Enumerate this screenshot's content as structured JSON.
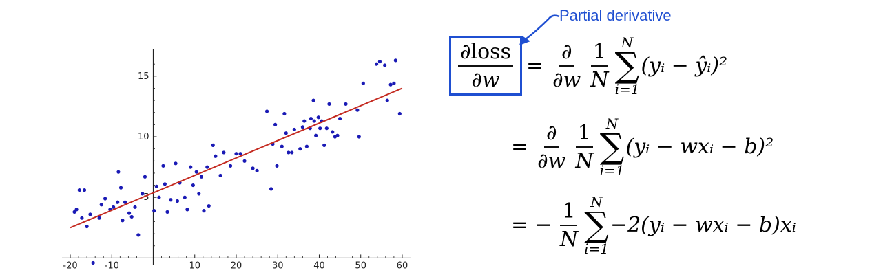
{
  "chart_data": {
    "type": "scatter",
    "xlim": [
      -21,
      62
    ],
    "ylim": [
      -0.6,
      17.2
    ],
    "x_ticks": [
      -20,
      -10,
      10,
      20,
      30,
      40,
      50,
      60
    ],
    "x_tick_labels": [
      "-20",
      "-10",
      "10",
      "20",
      "30",
      "40",
      "50",
      "60"
    ],
    "y_ticks": [
      5,
      10,
      15
    ],
    "y_tick_labels": [
      "5",
      "10",
      "15"
    ],
    "grid": false,
    "colors": {
      "points": "#1a1ab5",
      "fit_line": "#c42a20",
      "axes": "#222222"
    },
    "fit_line": {
      "x": [
        -20,
        60
      ],
      "y": [
        2.5,
        14.0
      ]
    },
    "series": [
      {
        "points": [
          [
            -19,
            3.8
          ],
          [
            -18.5,
            4.0
          ],
          [
            -17.8,
            5.6
          ],
          [
            -17.2,
            3.3
          ],
          [
            -16.6,
            5.6
          ],
          [
            -16,
            2.6
          ],
          [
            -15.2,
            3.6
          ],
          [
            -14.5,
            -0.4
          ],
          [
            -13,
            3.3
          ],
          [
            -12.5,
            4.4
          ],
          [
            -11.6,
            4.9
          ],
          [
            -10.4,
            4.0
          ],
          [
            -9.6,
            4.2
          ],
          [
            -8.6,
            4.6
          ],
          [
            -7.8,
            5.8
          ],
          [
            -7.4,
            3.1
          ],
          [
            -6.8,
            4.6
          ],
          [
            -5.8,
            3.7
          ],
          [
            -5.2,
            3.4
          ],
          [
            -4.4,
            4.2
          ],
          [
            -3.6,
            1.9
          ],
          [
            -2.6,
            5.3
          ],
          [
            -2,
            6.7
          ],
          [
            0.2,
            3.9
          ],
          [
            0.8,
            5.9
          ],
          [
            1.4,
            5.0
          ],
          [
            2.4,
            7.6
          ],
          [
            2.8,
            6.1
          ],
          [
            3.4,
            3.8
          ],
          [
            4.2,
            4.8
          ],
          [
            5.4,
            7.8
          ],
          [
            5.8,
            4.7
          ],
          [
            6.4,
            6.2
          ],
          [
            7.6,
            5.0
          ],
          [
            8.2,
            4.0
          ],
          [
            9,
            7.5
          ],
          [
            9.6,
            6.0
          ],
          [
            10.4,
            7.1
          ],
          [
            11,
            5.3
          ],
          [
            11.6,
            6.7
          ],
          [
            12.2,
            3.9
          ],
          [
            13,
            7.5
          ],
          [
            13.4,
            4.3
          ],
          [
            14.4,
            9.3
          ],
          [
            15,
            8.4
          ],
          [
            16.2,
            6.8
          ],
          [
            17,
            8.7
          ],
          [
            18.6,
            7.6
          ],
          [
            20,
            8.6
          ],
          [
            21,
            8.6
          ],
          [
            22,
            8.0
          ],
          [
            24,
            7.4
          ],
          [
            25,
            7.2
          ],
          [
            27.4,
            12.1
          ],
          [
            28.4,
            5.7
          ],
          [
            28.8,
            9.4
          ],
          [
            29.4,
            11.0
          ],
          [
            29.8,
            7.6
          ],
          [
            31,
            9.2
          ],
          [
            31.6,
            11.9
          ],
          [
            32,
            10.3
          ],
          [
            32.6,
            8.7
          ],
          [
            33.4,
            8.7
          ],
          [
            34,
            10.6
          ],
          [
            35.4,
            9.0
          ],
          [
            36,
            10.8
          ],
          [
            36.4,
            11.3
          ],
          [
            37,
            9.2
          ],
          [
            37.8,
            10.7
          ],
          [
            38,
            11.5
          ],
          [
            38.6,
            13.0
          ],
          [
            38.8,
            11.3
          ],
          [
            39.2,
            10.1
          ],
          [
            39.8,
            11.6
          ],
          [
            40.2,
            10.7
          ],
          [
            40.6,
            11.3
          ],
          [
            41.2,
            9.3
          ],
          [
            41.8,
            10.7
          ],
          [
            42.4,
            12.7
          ],
          [
            43.2,
            10.4
          ],
          [
            43.8,
            10.0
          ],
          [
            44.4,
            10.1
          ],
          [
            45,
            11.5
          ],
          [
            46.4,
            12.7
          ],
          [
            49.2,
            12.2
          ],
          [
            49.6,
            10.0
          ],
          [
            50.6,
            14.4
          ],
          [
            53.8,
            16.0
          ],
          [
            54.6,
            16.2
          ],
          [
            55.8,
            15.9
          ],
          [
            56.4,
            13.0
          ],
          [
            57.2,
            14.3
          ],
          [
            58,
            14.4
          ],
          [
            58.4,
            16.3
          ],
          [
            59.4,
            11.9
          ],
          [
            -8.4,
            7.1
          ]
        ]
      }
    ]
  },
  "equations": {
    "annotation_label": "Partial derivative",
    "row1": {
      "lhs_num": "∂loss",
      "lhs_den": "∂w",
      "eq": "=",
      "d_num": "∂",
      "d_den": "∂w",
      "one": "1",
      "N": "N",
      "sum_top": "N",
      "sum_sym": "∑",
      "sum_bot": "i=1",
      "body": "(yᵢ − ŷᵢ)²"
    },
    "row2": {
      "eq": "=",
      "d_num": "∂",
      "d_den": "∂w",
      "one": "1",
      "N": "N",
      "sum_top": "N",
      "sum_sym": "∑",
      "sum_bot": "i=1",
      "body": "(yᵢ − wxᵢ − b)²"
    },
    "row3": {
      "eq": "= −",
      "one": "1",
      "N": "N",
      "sum_top": "N",
      "sum_sym": "∑",
      "sum_bot": "i=1",
      "body": "−2(yᵢ − wxᵢ − b)xᵢ"
    }
  }
}
